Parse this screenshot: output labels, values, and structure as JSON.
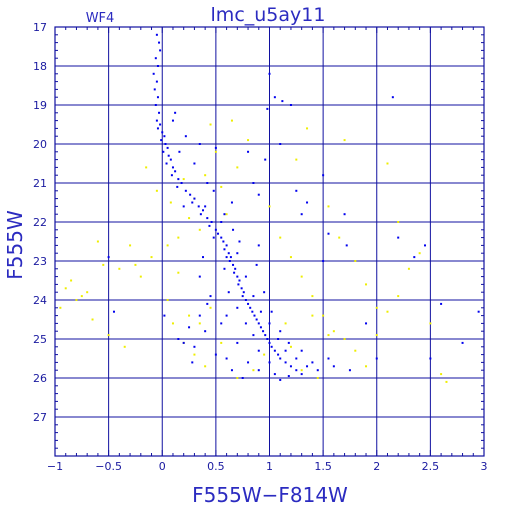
{
  "chart_data": {
    "type": "scatter",
    "title": "lmc_u5ay11",
    "subtitle": "WF4",
    "xlabel": "F555W−F814W",
    "ylabel": "F555W",
    "xlim": [
      -1,
      3
    ],
    "ylim": [
      28,
      17
    ],
    "y_inverted": true,
    "grid": true,
    "x_ticks": [
      -1,
      -0.5,
      0,
      0.5,
      1,
      1.5,
      2,
      2.5,
      3
    ],
    "x_tick_labels": [
      "−1",
      "−0.5",
      "0",
      "0.5",
      "1",
      "1.5",
      "2",
      "2.5",
      "3"
    ],
    "y_ticks": [
      17,
      18,
      19,
      20,
      21,
      22,
      23,
      24,
      25,
      26,
      27
    ],
    "y_tick_labels": [
      "17",
      "18",
      "19",
      "20",
      "21",
      "22",
      "23",
      "24",
      "25",
      "26",
      "27"
    ],
    "colors": {
      "frame": "#1010a0",
      "grid": "#1010a0",
      "text": "#2b2bc0",
      "primary": "#0000ee",
      "secondary": "#eeee00"
    },
    "series": [
      {
        "color": "#0000ee",
        "points": [
          [
            -0.05,
            17.2
          ],
          [
            -0.03,
            17.4
          ],
          [
            -0.02,
            17.6
          ],
          [
            -0.06,
            17.8
          ],
          [
            -0.04,
            18.0
          ],
          [
            -0.08,
            18.2
          ],
          [
            -0.05,
            18.4
          ],
          [
            -0.07,
            18.6
          ],
          [
            -0.04,
            18.8
          ],
          [
            -0.06,
            19.0
          ],
          [
            -0.03,
            19.2
          ],
          [
            -0.05,
            19.4
          ],
          [
            -0.02,
            19.5
          ],
          [
            -0.04,
            19.6
          ],
          [
            0.0,
            19.7
          ],
          [
            0.02,
            19.8
          ],
          [
            -0.01,
            19.9
          ],
          [
            0.03,
            20.0
          ],
          [
            0.05,
            20.1
          ],
          [
            0.01,
            20.2
          ],
          [
            0.06,
            20.3
          ],
          [
            0.08,
            20.4
          ],
          [
            0.04,
            20.5
          ],
          [
            0.1,
            20.6
          ],
          [
            0.12,
            20.7
          ],
          [
            0.09,
            20.8
          ],
          [
            0.15,
            20.9
          ],
          [
            0.18,
            21.0
          ],
          [
            0.14,
            21.1
          ],
          [
            0.22,
            21.2
          ],
          [
            0.26,
            21.3
          ],
          [
            0.3,
            21.4
          ],
          [
            0.28,
            21.5
          ],
          [
            0.34,
            21.6
          ],
          [
            0.38,
            21.7
          ],
          [
            0.36,
            21.8
          ],
          [
            0.42,
            21.9
          ],
          [
            0.46,
            22.0
          ],
          [
            0.44,
            22.1
          ],
          [
            0.5,
            22.2
          ],
          [
            0.52,
            22.3
          ],
          [
            0.55,
            22.4
          ],
          [
            0.57,
            22.5
          ],
          [
            0.6,
            22.6
          ],
          [
            0.58,
            22.7
          ],
          [
            0.62,
            22.8
          ],
          [
            0.64,
            22.9
          ],
          [
            0.63,
            23.0
          ],
          [
            0.66,
            23.1
          ],
          [
            0.68,
            23.2
          ],
          [
            0.67,
            23.3
          ],
          [
            0.7,
            23.4
          ],
          [
            0.72,
            23.5
          ],
          [
            0.71,
            23.6
          ],
          [
            0.74,
            23.7
          ],
          [
            0.76,
            23.8
          ],
          [
            0.75,
            23.9
          ],
          [
            0.78,
            24.0
          ],
          [
            0.8,
            24.1
          ],
          [
            0.82,
            24.2
          ],
          [
            0.84,
            24.3
          ],
          [
            0.86,
            24.4
          ],
          [
            0.88,
            24.5
          ],
          [
            0.9,
            24.6
          ],
          [
            0.92,
            24.7
          ],
          [
            0.94,
            24.8
          ],
          [
            0.96,
            24.9
          ],
          [
            0.98,
            25.0
          ],
          [
            1.0,
            25.1
          ],
          [
            1.02,
            25.2
          ],
          [
            1.05,
            25.3
          ],
          [
            1.08,
            25.4
          ],
          [
            1.1,
            25.5
          ],
          [
            1.15,
            25.6
          ],
          [
            1.2,
            25.7
          ],
          [
            1.25,
            25.8
          ],
          [
            1.3,
            25.9
          ],
          [
            0.55,
            22.0
          ],
          [
            0.48,
            22.4
          ],
          [
            0.66,
            22.2
          ],
          [
            0.7,
            22.8
          ],
          [
            0.58,
            23.2
          ],
          [
            0.78,
            23.4
          ],
          [
            0.62,
            23.8
          ],
          [
            0.85,
            23.9
          ],
          [
            0.7,
            24.2
          ],
          [
            0.92,
            24.3
          ],
          [
            0.78,
            24.6
          ],
          [
            1.0,
            24.6
          ],
          [
            0.85,
            24.9
          ],
          [
            1.08,
            25.0
          ],
          [
            0.9,
            25.3
          ],
          [
            1.15,
            25.3
          ],
          [
            1.0,
            25.6
          ],
          [
            1.25,
            25.5
          ],
          [
            1.35,
            25.7
          ],
          [
            1.4,
            25.6
          ],
          [
            0.4,
            24.8
          ],
          [
            0.3,
            25.2
          ],
          [
            0.5,
            25.4
          ],
          [
            0.2,
            25.1
          ],
          [
            0.6,
            25.5
          ],
          [
            0.35,
            24.4
          ],
          [
            0.45,
            23.9
          ],
          [
            0.55,
            24.6
          ],
          [
            0.7,
            25.1
          ],
          [
            0.8,
            25.6
          ],
          [
            0.9,
            25.8
          ],
          [
            1.05,
            25.9
          ],
          [
            1.18,
            25.95
          ],
          [
            1.45,
            25.8
          ],
          [
            1.55,
            25.5
          ],
          [
            1.6,
            25.7
          ],
          [
            0.25,
            24.7
          ],
          [
            0.65,
            25.8
          ],
          [
            0.75,
            26.0
          ],
          [
            1.1,
            26.05
          ],
          [
            0.38,
            22.9
          ],
          [
            0.9,
            22.6
          ],
          [
            0.3,
            20.5
          ],
          [
            0.22,
            19.8
          ],
          [
            0.1,
            19.4
          ],
          [
            0.42,
            21.0
          ],
          [
            0.9,
            21.3
          ],
          [
            0.96,
            20.4
          ],
          [
            0.98,
            19.1
          ],
          [
            1.05,
            18.8
          ],
          [
            1.12,
            18.9
          ],
          [
            1.0,
            18.2
          ],
          [
            1.2,
            19.0
          ],
          [
            1.1,
            20.0
          ],
          [
            1.25,
            21.2
          ],
          [
            1.3,
            21.8
          ],
          [
            1.55,
            22.3
          ],
          [
            1.7,
            21.8
          ],
          [
            1.5,
            20.8
          ],
          [
            1.35,
            21.5
          ],
          [
            1.72,
            22.6
          ],
          [
            1.5,
            23.0
          ],
          [
            2.15,
            18.8
          ],
          [
            2.2,
            22.4
          ],
          [
            2.35,
            22.9
          ],
          [
            2.45,
            22.6
          ],
          [
            2.6,
            24.1
          ],
          [
            2.8,
            25.1
          ],
          [
            2.95,
            24.3
          ],
          [
            1.9,
            24.6
          ],
          [
            1.75,
            25.8
          ],
          [
            2.0,
            25.5
          ],
          [
            2.5,
            25.5
          ],
          [
            0.6,
            24.4
          ],
          [
            0.6,
            22.9
          ],
          [
            0.48,
            21.2
          ],
          [
            0.58,
            21.8
          ],
          [
            0.72,
            22.5
          ],
          [
            0.88,
            23.1
          ],
          [
            0.95,
            23.8
          ],
          [
            1.02,
            24.3
          ],
          [
            1.1,
            24.8
          ],
          [
            1.18,
            25.1
          ],
          [
            1.3,
            25.3
          ],
          [
            0.35,
            23.4
          ],
          [
            0.42,
            24.1
          ],
          [
            -0.45,
            24.3
          ],
          [
            -0.5,
            22.9
          ],
          [
            0.02,
            24.4
          ],
          [
            0.15,
            25.0
          ],
          [
            0.28,
            25.6
          ],
          [
            0.12,
            19.2
          ],
          [
            0.16,
            20.2
          ],
          [
            0.2,
            21.6
          ],
          [
            0.4,
            21.6
          ],
          [
            0.5,
            20.1
          ],
          [
            0.8,
            20.2
          ],
          [
            0.85,
            21.0
          ],
          [
            0.65,
            21.5
          ],
          [
            0.35,
            20.0
          ]
        ]
      },
      {
        "color": "#eeee00",
        "points": [
          [
            -0.85,
            23.5
          ],
          [
            -0.75,
            23.9
          ],
          [
            -0.6,
            22.5
          ],
          [
            -0.55,
            23.1
          ],
          [
            -0.4,
            23.2
          ],
          [
            -0.3,
            22.6
          ],
          [
            -0.2,
            23.4
          ],
          [
            -0.1,
            22.9
          ],
          [
            -0.95,
            24.2
          ],
          [
            -0.7,
            23.8
          ],
          [
            -0.65,
            24.5
          ],
          [
            -0.5,
            24.9
          ],
          [
            -0.35,
            25.2
          ],
          [
            -0.9,
            23.7
          ],
          [
            -0.8,
            24.0
          ],
          [
            -0.25,
            23.1
          ],
          [
            0.05,
            24.0
          ],
          [
            0.1,
            24.6
          ],
          [
            0.2,
            25.1
          ],
          [
            0.3,
            25.4
          ],
          [
            0.4,
            25.7
          ],
          [
            0.05,
            22.6
          ],
          [
            0.15,
            23.3
          ],
          [
            0.25,
            21.9
          ],
          [
            0.35,
            22.2
          ],
          [
            0.2,
            20.9
          ],
          [
            0.45,
            19.5
          ],
          [
            0.5,
            20.2
          ],
          [
            0.55,
            21.1
          ],
          [
            0.3,
            21.4
          ],
          [
            0.6,
            21.8
          ],
          [
            0.7,
            20.6
          ],
          [
            0.8,
            19.9
          ],
          [
            1.0,
            21.6
          ],
          [
            1.1,
            22.4
          ],
          [
            1.2,
            22.9
          ],
          [
            1.3,
            23.4
          ],
          [
            1.4,
            23.9
          ],
          [
            1.5,
            24.4
          ],
          [
            1.6,
            24.8
          ],
          [
            1.7,
            25.0
          ],
          [
            1.8,
            25.3
          ],
          [
            1.9,
            25.7
          ],
          [
            2.0,
            24.9
          ],
          [
            2.1,
            24.3
          ],
          [
            2.2,
            23.9
          ],
          [
            2.3,
            23.2
          ],
          [
            2.4,
            22.8
          ],
          [
            2.5,
            24.6
          ],
          [
            2.6,
            25.9
          ],
          [
            2.65,
            26.1
          ],
          [
            2.1,
            20.5
          ],
          [
            2.2,
            22.0
          ],
          [
            1.7,
            19.9
          ],
          [
            1.35,
            19.6
          ],
          [
            1.25,
            20.4
          ],
          [
            1.55,
            21.6
          ],
          [
            1.65,
            22.4
          ],
          [
            1.8,
            23.0
          ],
          [
            1.9,
            23.6
          ],
          [
            2.0,
            24.2
          ],
          [
            1.15,
            24.6
          ],
          [
            1.2,
            25.2
          ],
          [
            1.3,
            25.8
          ],
          [
            1.45,
            26.0
          ],
          [
            1.55,
            24.9
          ],
          [
            1.4,
            24.4
          ],
          [
            0.95,
            25.4
          ],
          [
            0.85,
            25.8
          ],
          [
            0.7,
            26.0
          ],
          [
            0.55,
            25.1
          ],
          [
            0.45,
            24.2
          ],
          [
            0.35,
            24.6
          ],
          [
            0.25,
            24.4
          ],
          [
            0.15,
            22.4
          ],
          [
            0.08,
            21.5
          ],
          [
            -0.05,
            21.2
          ],
          [
            -0.15,
            20.6
          ],
          [
            0.4,
            20.8
          ],
          [
            0.65,
            19.4
          ]
        ]
      }
    ]
  }
}
